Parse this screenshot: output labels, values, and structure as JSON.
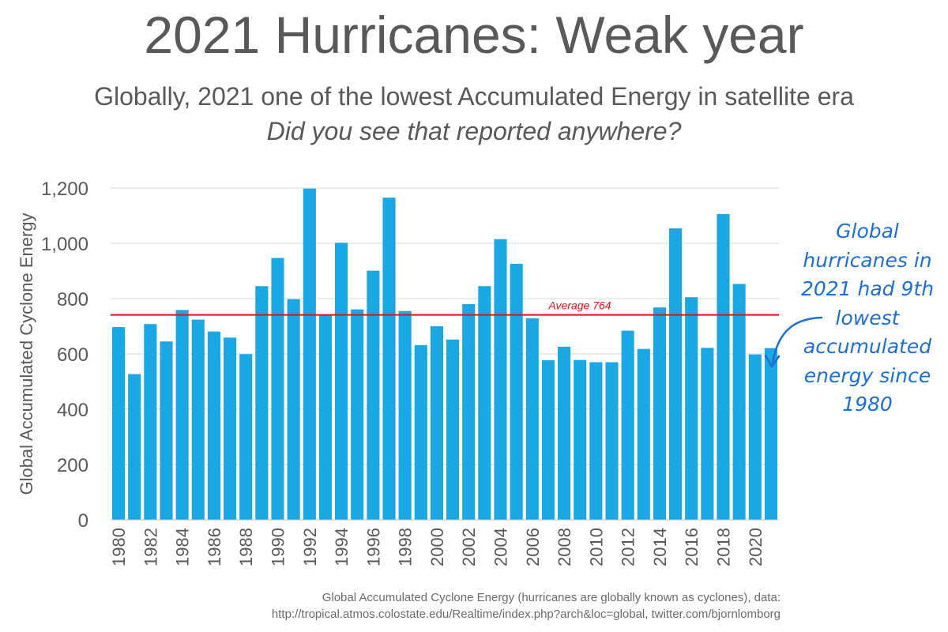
{
  "chart_data": {
    "type": "bar",
    "title": "2021 Hurricanes: Weak year",
    "subtitle": "Globally, 2021 one of the lowest Accumulated Energy in satellite era",
    "subtitle2": "Did you see that reported anywhere?",
    "ylabel": "Global Accumulated Cyclone Energy",
    "xlabel": "",
    "ylim": [
      0,
      1200
    ],
    "yticks": [
      0,
      200,
      400,
      600,
      800,
      1000,
      1200
    ],
    "ytick_labels": [
      "0",
      "200",
      "400",
      "600",
      "800",
      "1,000",
      "1,200"
    ],
    "categories": [
      1980,
      1981,
      1982,
      1983,
      1984,
      1985,
      1986,
      1987,
      1988,
      1989,
      1990,
      1991,
      1992,
      1993,
      1994,
      1995,
      1996,
      1997,
      1998,
      1999,
      2000,
      2001,
      2002,
      2003,
      2004,
      2005,
      2006,
      2007,
      2008,
      2009,
      2010,
      2011,
      2012,
      2013,
      2014,
      2015,
      2016,
      2017,
      2018,
      2019,
      2020,
      2021
    ],
    "xtick_labels": [
      "1980",
      "1982",
      "1984",
      "1986",
      "1988",
      "1990",
      "1992",
      "1994",
      "1996",
      "1998",
      "2000",
      "2002",
      "2004",
      "2006",
      "2008",
      "2010",
      "2012",
      "2014",
      "2016",
      "2018",
      "2020"
    ],
    "values": [
      697,
      527,
      708,
      645,
      759,
      724,
      681,
      659,
      599,
      845,
      947,
      798,
      1198,
      742,
      1002,
      761,
      901,
      1165,
      755,
      632,
      700,
      652,
      780,
      845,
      1015,
      926,
      729,
      577,
      626,
      578,
      570,
      570,
      684,
      618,
      768,
      1054,
      805,
      622,
      1106,
      853,
      598,
      621
    ],
    "bar_color": "#1aa7e3",
    "grid": true,
    "average": {
      "value": 764,
      "label": "Average 764",
      "color": "#e0101d"
    }
  },
  "source": {
    "line1": "Global Accumulated Cyclone Energy (hurricanes are globally known as cyclones), data:",
    "line2": "http://tropical.atmos.colostate.edu/Realtime/index.php?arch&loc=global, twitter.com/bjornlomborg"
  },
  "annotation": {
    "lines": [
      "Global",
      "hurricanes in",
      "2021 had 9th",
      "lowest",
      "accumulated",
      "energy since",
      "1980"
    ],
    "color": "#1f6fd1"
  }
}
